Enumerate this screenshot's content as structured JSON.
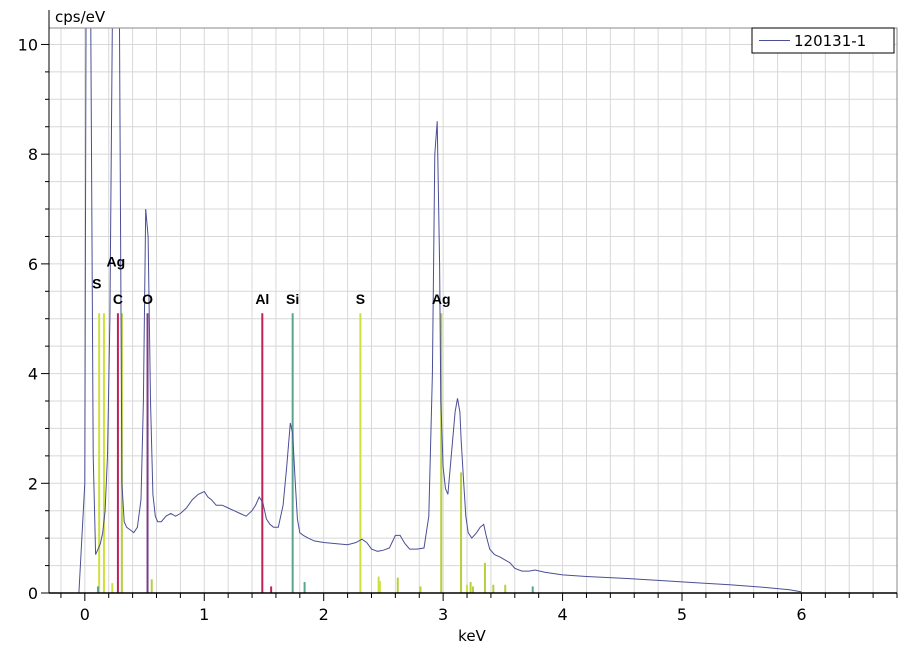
{
  "chart_data": {
    "type": "line",
    "ylabel": "cps/eV",
    "xlabel": "keV",
    "xlim": [
      -0.3,
      6.8
    ],
    "ylim": [
      0,
      10.3
    ],
    "grid": true,
    "legend_position": "top-right",
    "x_ticks": [
      "0",
      "1",
      "2",
      "3",
      "4",
      "5",
      "6"
    ],
    "y_ticks": [
      "0",
      "2",
      "4",
      "6",
      "8",
      "10"
    ],
    "series": [
      {
        "name": "120131-1",
        "color": "#4a4f96",
        "x": [
          -0.05,
          0.0,
          0.01,
          0.03,
          0.05,
          0.07,
          0.09,
          0.11,
          0.13,
          0.15,
          0.17,
          0.19,
          0.21,
          0.23,
          0.25,
          0.27,
          0.29,
          0.31,
          0.33,
          0.35,
          0.38,
          0.41,
          0.44,
          0.47,
          0.49,
          0.51,
          0.53,
          0.55,
          0.57,
          0.59,
          0.61,
          0.64,
          0.68,
          0.72,
          0.76,
          0.8,
          0.85,
          0.9,
          0.95,
          1.0,
          1.03,
          1.06,
          1.1,
          1.15,
          1.2,
          1.25,
          1.3,
          1.35,
          1.4,
          1.43,
          1.46,
          1.49,
          1.52,
          1.55,
          1.58,
          1.62,
          1.66,
          1.69,
          1.72,
          1.74,
          1.76,
          1.78,
          1.8,
          1.83,
          1.87,
          1.92,
          2.0,
          2.1,
          2.2,
          2.27,
          2.32,
          2.36,
          2.4,
          2.45,
          2.5,
          2.55,
          2.6,
          2.64,
          2.68,
          2.72,
          2.78,
          2.84,
          2.88,
          2.91,
          2.93,
          2.95,
          2.97,
          2.98,
          3.0,
          3.02,
          3.04,
          3.06,
          3.08,
          3.1,
          3.12,
          3.14,
          3.15,
          3.17,
          3.19,
          3.21,
          3.24,
          3.28,
          3.31,
          3.34,
          3.36,
          3.39,
          3.43,
          3.48,
          3.52,
          3.56,
          3.6,
          3.66,
          3.72,
          3.77,
          3.85,
          4.0,
          4.2,
          4.5,
          4.8,
          5.1,
          5.4,
          5.7,
          5.9,
          6.0
        ],
        "y": [
          0.0,
          2.0,
          10.3,
          10.3,
          10.3,
          2.5,
          0.7,
          0.8,
          0.9,
          1.1,
          1.5,
          2.5,
          5.0,
          10.3,
          10.3,
          10.3,
          10.3,
          2.0,
          1.3,
          1.2,
          1.15,
          1.1,
          1.2,
          1.7,
          3.5,
          7.0,
          6.5,
          3.5,
          1.8,
          1.4,
          1.3,
          1.3,
          1.4,
          1.45,
          1.4,
          1.45,
          1.55,
          1.7,
          1.8,
          1.85,
          1.75,
          1.7,
          1.6,
          1.6,
          1.55,
          1.5,
          1.45,
          1.4,
          1.5,
          1.6,
          1.75,
          1.65,
          1.35,
          1.25,
          1.2,
          1.2,
          1.6,
          2.3,
          3.1,
          2.9,
          2.1,
          1.35,
          1.1,
          1.05,
          1.0,
          0.95,
          0.92,
          0.9,
          0.88,
          0.92,
          0.98,
          0.92,
          0.8,
          0.76,
          0.78,
          0.82,
          1.05,
          1.05,
          0.9,
          0.8,
          0.8,
          0.82,
          1.4,
          4.0,
          8.0,
          8.6,
          6.0,
          3.5,
          2.3,
          1.9,
          1.8,
          2.3,
          2.8,
          3.3,
          3.55,
          3.3,
          2.8,
          2.1,
          1.4,
          1.1,
          1.0,
          1.1,
          1.2,
          1.25,
          1.05,
          0.8,
          0.7,
          0.65,
          0.6,
          0.55,
          0.45,
          0.4,
          0.4,
          0.42,
          0.38,
          0.33,
          0.3,
          0.27,
          0.23,
          0.19,
          0.15,
          0.1,
          0.06,
          0.02
        ]
      }
    ],
    "element_markers": [
      {
        "label": "C",
        "x": 0.277,
        "color": "#c02058"
      },
      {
        "label": "O",
        "x": 0.525,
        "color": "#7a3b8a"
      },
      {
        "label": "Al",
        "x": 1.486,
        "color": "#c02058"
      },
      {
        "label": "Si",
        "x": 1.74,
        "color": "#5aa590"
      },
      {
        "label": "S",
        "x": 2.307,
        "color": "#cfe03a"
      },
      {
        "label": "Ag",
        "x": 2.984,
        "color": "#b6d03c"
      }
    ],
    "extra_labels": [
      {
        "label": "S",
        "x": 0.15
      },
      {
        "label": "Ag",
        "x": 0.31
      }
    ],
    "minor_lines": [
      {
        "x": 0.12,
        "h": 5.1,
        "color": "#cfe03a"
      },
      {
        "x": 0.16,
        "h": 5.1,
        "color": "#cfe03a"
      },
      {
        "x": 0.31,
        "h": 5.1,
        "color": "#b6d03c"
      },
      {
        "x": 0.11,
        "h": 0.12,
        "color": "#5aa590"
      },
      {
        "x": 0.23,
        "h": 0.18,
        "color": "#cfe03a"
      },
      {
        "x": 0.56,
        "h": 0.25,
        "color": "#b6d03c"
      },
      {
        "x": 1.56,
        "h": 0.12,
        "color": "#c02058"
      },
      {
        "x": 1.84,
        "h": 0.2,
        "color": "#5aa590"
      },
      {
        "x": 2.46,
        "h": 0.3,
        "color": "#cfe03a"
      },
      {
        "x": 2.47,
        "h": 0.22,
        "color": "#cfe03a"
      },
      {
        "x": 2.62,
        "h": 0.28,
        "color": "#b6d03c"
      },
      {
        "x": 2.81,
        "h": 0.12,
        "color": "#b6d03c"
      },
      {
        "x": 3.15,
        "h": 2.2,
        "color": "#b6d03c"
      },
      {
        "x": 3.2,
        "h": 0.15,
        "color": "#cfe03a"
      },
      {
        "x": 3.23,
        "h": 0.2,
        "color": "#b6d03c"
      },
      {
        "x": 3.25,
        "h": 0.12,
        "color": "#b6d03c"
      },
      {
        "x": 3.35,
        "h": 0.55,
        "color": "#b6d03c"
      },
      {
        "x": 3.42,
        "h": 0.15,
        "color": "#b6d03c"
      },
      {
        "x": 3.52,
        "h": 0.15,
        "color": "#b6d03c"
      },
      {
        "x": 3.75,
        "h": 0.12,
        "color": "#5aa590"
      }
    ]
  }
}
